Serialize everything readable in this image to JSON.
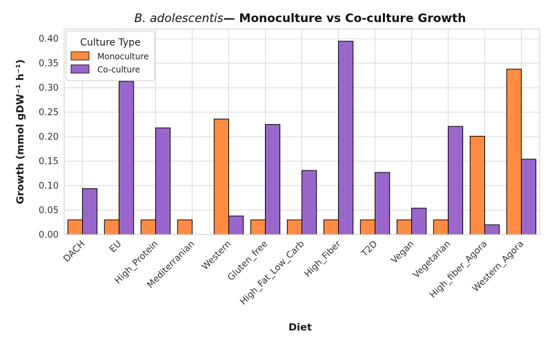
{
  "chart_data": {
    "type": "bar",
    "title_italic": "B. adolescentis",
    "title_rest": "— Monoculture vs Co-culture Growth",
    "xlabel": "Diet",
    "ylabel": "Growth (mmol gDW⁻¹ h⁻¹)",
    "ylim": [
      0,
      0.42
    ],
    "yticks": [
      "0.00",
      "0.05",
      "0.10",
      "0.15",
      "0.20",
      "0.25",
      "0.30",
      "0.35",
      "0.40"
    ],
    "grid": true,
    "legend": {
      "title": "Culture Type",
      "placement": "top-left"
    },
    "categories": [
      "DACH",
      "EU",
      "High_Protein",
      "Mediterranian",
      "Western",
      "Gluten_free",
      "High_Fat_Low_Carb",
      "High_Fiber",
      "T2D",
      "Vegan",
      "Vegetarian",
      "High_fiber_Agora",
      "Western_Agora"
    ],
    "series": [
      {
        "name": "Monoculture",
        "color": "#ff8c42",
        "values": [
          0.03,
          0.03,
          0.03,
          0.03,
          0.236,
          0.03,
          0.03,
          0.03,
          0.03,
          0.03,
          0.03,
          0.201,
          0.338
        ]
      },
      {
        "name": "Co-culture",
        "color": "#9966cc",
        "values": [
          0.094,
          0.313,
          0.218,
          0,
          0.038,
          0.225,
          0.131,
          0.395,
          0.127,
          0.054,
          0.221,
          0.02,
          0.154
        ]
      }
    ]
  }
}
